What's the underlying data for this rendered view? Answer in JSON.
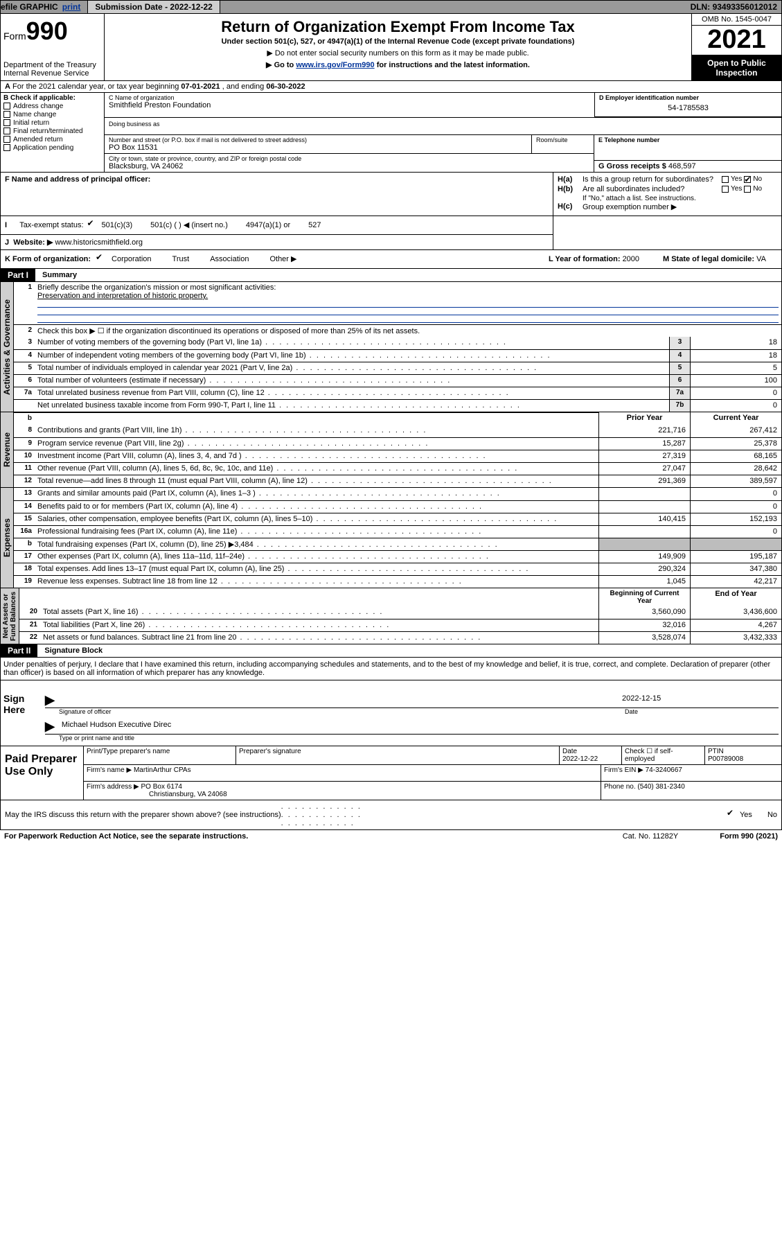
{
  "topbar": {
    "efile_prefix": "efile ",
    "graphic": "GRAPHIC ",
    "print": "print",
    "submission_date_label": "Submission Date",
    "submission_date": "2022-12-22",
    "dln_label": "DLN: ",
    "dln": "93493356012012"
  },
  "header": {
    "form_label": "Form",
    "form_number": "990",
    "title": "Return of Organization Exempt From Income Tax",
    "sub1": "Under section 501(c), 527, or 4947(a)(1) of the Internal Revenue Code (except private foundations)",
    "sub2": "▶ Do not enter social security numbers on this form as it may be made public.",
    "sub3_pre": "▶ Go to ",
    "sub3_link": "www.irs.gov/Form990",
    "sub3_post": " for instructions and the latest information.",
    "dept": "Department of the Treasury\nInternal Revenue Service",
    "omb": "OMB No. 1545-0047",
    "year": "2021",
    "open": "Open to Public Inspection"
  },
  "box_a": {
    "line": "For the 2021 calendar year, or tax year beginning ",
    "begin": "07-01-2021",
    "mid": "   , and ending ",
    "end": "06-30-2022"
  },
  "box_b": {
    "label": "B Check if applicable:",
    "items": [
      "Address change",
      "Name change",
      "Initial return",
      "Final return/terminated",
      "Amended return",
      "Application pending"
    ]
  },
  "box_c": {
    "name_label": "C Name of organization",
    "name": "Smithfield Preston Foundation",
    "dba_label": "Doing business as",
    "addr_label": "Number and street (or P.O. box if mail is not delivered to street address)",
    "addr": "PO Box 11531",
    "room_label": "Room/suite",
    "city_label": "City or town, state or province, country, and ZIP or foreign postal code",
    "city": "Blacksburg, VA   24062"
  },
  "box_d": {
    "label": "D Employer identification number",
    "val": "54-1785583"
  },
  "box_e": {
    "label": "E Telephone number"
  },
  "box_g": {
    "label": "G Gross receipts $ ",
    "val": "468,597"
  },
  "box_f": {
    "label": "F Name and address of principal officer:"
  },
  "box_h": {
    "ha_label": "Is this a group return for subordinates?",
    "hb_label": "Are all subordinates included?",
    "hb_note": "If \"No,\" attach a list. See instructions.",
    "hc_label": "Group exemption number ▶",
    "yes": "Yes",
    "no": "No"
  },
  "box_i": {
    "label": "Tax-exempt status:",
    "opt1": "501(c)(3)",
    "opt2": "501(c) (   ) ◀ (insert no.)",
    "opt3": "4947(a)(1) or",
    "opt4": "527"
  },
  "box_j": {
    "label": "Website: ▶ ",
    "val": "www.historicsmithfield.org"
  },
  "box_k": {
    "label": "K Form of organization:",
    "opts": [
      "Corporation",
      "Trust",
      "Association",
      "Other ▶"
    ],
    "l_label": "L Year of formation: ",
    "l_val": "2000",
    "m_label": "M State of legal domicile: ",
    "m_val": "VA"
  },
  "part1": {
    "header": "Part I",
    "title": "Summary",
    "q1a": "Briefly describe the organization's mission or most significant activities:",
    "q1b": "Preservation and interpretation of historic property.",
    "q2": "Check this box ▶ ☐  if the organization discontinued its operations or disposed of more than 25% of its net assets.",
    "lines_ag": [
      {
        "n": "3",
        "d": "Number of voting members of the governing body (Part VI, line 1a)",
        "b": "3",
        "v": "18"
      },
      {
        "n": "4",
        "d": "Number of independent voting members of the governing body (Part VI, line 1b)",
        "b": "4",
        "v": "18"
      },
      {
        "n": "5",
        "d": "Total number of individuals employed in calendar year 2021 (Part V, line 2a)",
        "b": "5",
        "v": "5"
      },
      {
        "n": "6",
        "d": "Total number of volunteers (estimate if necessary)",
        "b": "6",
        "v": "100"
      },
      {
        "n": "7a",
        "d": "Total unrelated business revenue from Part VIII, column (C), line 12",
        "b": "7a",
        "v": "0"
      },
      {
        "n": "",
        "d": "Net unrelated business taxable income from Form 990-T, Part I, line 11",
        "b": "7b",
        "v": "0"
      }
    ],
    "col_prior": "Prior Year",
    "col_current": "Current Year",
    "lines_rev": [
      {
        "n": "8",
        "d": "Contributions and grants (Part VIII, line 1h)",
        "p": "221,716",
        "c": "267,412"
      },
      {
        "n": "9",
        "d": "Program service revenue (Part VIII, line 2g)",
        "p": "15,287",
        "c": "25,378"
      },
      {
        "n": "10",
        "d": "Investment income (Part VIII, column (A), lines 3, 4, and 7d )",
        "p": "27,319",
        "c": "68,165"
      },
      {
        "n": "11",
        "d": "Other revenue (Part VIII, column (A), lines 5, 6d, 8c, 9c, 10c, and 11e)",
        "p": "27,047",
        "c": "28,642"
      },
      {
        "n": "12",
        "d": "Total revenue—add lines 8 through 11 (must equal Part VIII, column (A), line 12)",
        "p": "291,369",
        "c": "389,597"
      }
    ],
    "lines_exp": [
      {
        "n": "13",
        "d": "Grants and similar amounts paid (Part IX, column (A), lines 1–3 )",
        "p": "",
        "c": "0"
      },
      {
        "n": "14",
        "d": "Benefits paid to or for members (Part IX, column (A), line 4)",
        "p": "",
        "c": "0"
      },
      {
        "n": "15",
        "d": "Salaries, other compensation, employee benefits (Part IX, column (A), lines 5–10)",
        "p": "140,415",
        "c": "152,193"
      },
      {
        "n": "16a",
        "d": "Professional fundraising fees (Part IX, column (A), line 11e)",
        "p": "",
        "c": "0"
      },
      {
        "n": "b",
        "d": "Total fundraising expenses (Part IX, column (D), line 25) ▶3,484",
        "p": "GREY",
        "c": "GREY"
      },
      {
        "n": "17",
        "d": "Other expenses (Part IX, column (A), lines 11a–11d, 11f–24e)",
        "p": "149,909",
        "c": "195,187"
      },
      {
        "n": "18",
        "d": "Total expenses. Add lines 13–17 (must equal Part IX, column (A), line 25)",
        "p": "290,324",
        "c": "347,380"
      },
      {
        "n": "19",
        "d": "Revenue less expenses. Subtract line 18 from line 12",
        "p": "1,045",
        "c": "42,217"
      }
    ],
    "col_begin": "Beginning of Current Year",
    "col_end": "End of Year",
    "lines_na": [
      {
        "n": "20",
        "d": "Total assets (Part X, line 16)",
        "p": "3,560,090",
        "c": "3,436,600"
      },
      {
        "n": "21",
        "d": "Total liabilities (Part X, line 26)",
        "p": "32,016",
        "c": "4,267"
      },
      {
        "n": "22",
        "d": "Net assets or fund balances. Subtract line 21 from line 20",
        "p": "3,528,074",
        "c": "3,432,333"
      }
    ],
    "tabs": {
      "ag": "Activities & Governance",
      "rev": "Revenue",
      "exp": "Expenses",
      "na": "Net Assets or\nFund Balances"
    }
  },
  "part2": {
    "header": "Part II",
    "title": "Signature Block",
    "decl": "Under penalties of perjury, I declare that I have examined this return, including accompanying schedules and statements, and to the best of my knowledge and belief, it is true, correct, and complete. Declaration of preparer (other than officer) is based on all information of which preparer has any knowledge.",
    "sign_here": "Sign Here",
    "sig_officer": "Signature of officer",
    "date_label": "Date",
    "sig_date": "2022-12-15",
    "name_title": "Michael Hudson  Executive Direc",
    "name_caption": "Type or print name and title",
    "paid": "Paid Preparer Use Only",
    "pp_name_label": "Print/Type preparer's name",
    "pp_sig_label": "Preparer's signature",
    "pp_date_label": "Date",
    "pp_date": "2022-12-22",
    "pp_check_label": "Check ☐ if self-employed",
    "ptin_label": "PTIN",
    "ptin": "P00789008",
    "firm_name_label": "Firm's name      ▶ ",
    "firm_name": "MartinArthur CPAs",
    "firm_ein_label": "Firm's EIN ▶ ",
    "firm_ein": "74-3240667",
    "firm_addr_label": "Firm's address ▶ ",
    "firm_addr1": "PO Box 6174",
    "firm_addr2": "Christiansburg, VA   24068",
    "phone_label": "Phone no. ",
    "phone": "(540) 381-2340"
  },
  "footer": {
    "discuss": "May the IRS discuss this return with the preparer shown above? (see instructions)",
    "yes": "Yes",
    "no": "No",
    "paperwork": "For Paperwork Reduction Act Notice, see the separate instructions.",
    "cat": "Cat. No. 11282Y",
    "formno": "Form 990 (2021)"
  }
}
